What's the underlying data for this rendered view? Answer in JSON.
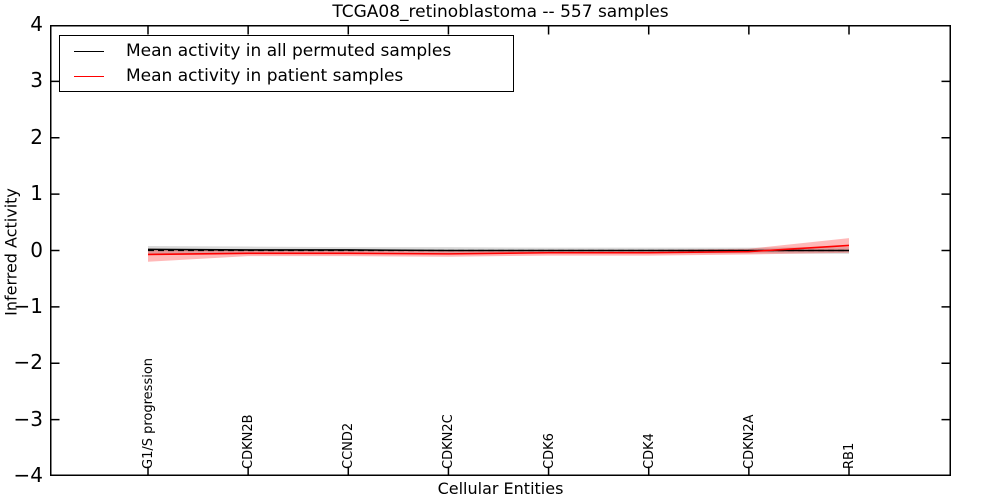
{
  "chart_data": {
    "type": "line",
    "title": "TCGA08_retinoblastoma -- 557 samples",
    "xlabel": "Cellular Entities",
    "ylabel": "Inferred Activity",
    "ylim": [
      -4,
      4
    ],
    "yticks": [
      4,
      3,
      2,
      1,
      0,
      -1,
      -2,
      -3,
      -4
    ],
    "categories": [
      "G1/S progression",
      "CDKN2B",
      "CCND2",
      "CDKN2C",
      "CDK6",
      "CDK4",
      "CDKN2A",
      "RB1"
    ],
    "grid": false,
    "legend_position": "upper left",
    "series": [
      {
        "name": "Mean activity in all permuted samples",
        "color": "#000000",
        "band_color": "#000000",
        "band_opacity": 0.15,
        "values": [
          0.02,
          0.01,
          0.01,
          0.0,
          0.0,
          0.0,
          0.0,
          0.0
        ],
        "band_upper": [
          0.08,
          0.07,
          0.06,
          0.06,
          0.05,
          0.05,
          0.05,
          0.06
        ],
        "band_lower": [
          -0.06,
          -0.05,
          -0.05,
          -0.05,
          -0.05,
          -0.05,
          -0.05,
          -0.06
        ]
      },
      {
        "name": "Mean activity in patient samples",
        "color": "#ff0000",
        "band_color": "#ff0000",
        "band_opacity": 0.28,
        "values": [
          -0.07,
          -0.05,
          -0.05,
          -0.06,
          -0.04,
          -0.04,
          -0.02,
          0.09
        ],
        "band_upper": [
          0.03,
          0.0,
          0.0,
          0.0,
          0.01,
          0.01,
          0.03,
          0.22
        ],
        "band_lower": [
          -0.2,
          -0.1,
          -0.1,
          -0.11,
          -0.09,
          -0.09,
          -0.07,
          -0.04
        ]
      }
    ],
    "zero_line": {
      "value": 0,
      "style": "dashed",
      "color": "#000000"
    }
  }
}
